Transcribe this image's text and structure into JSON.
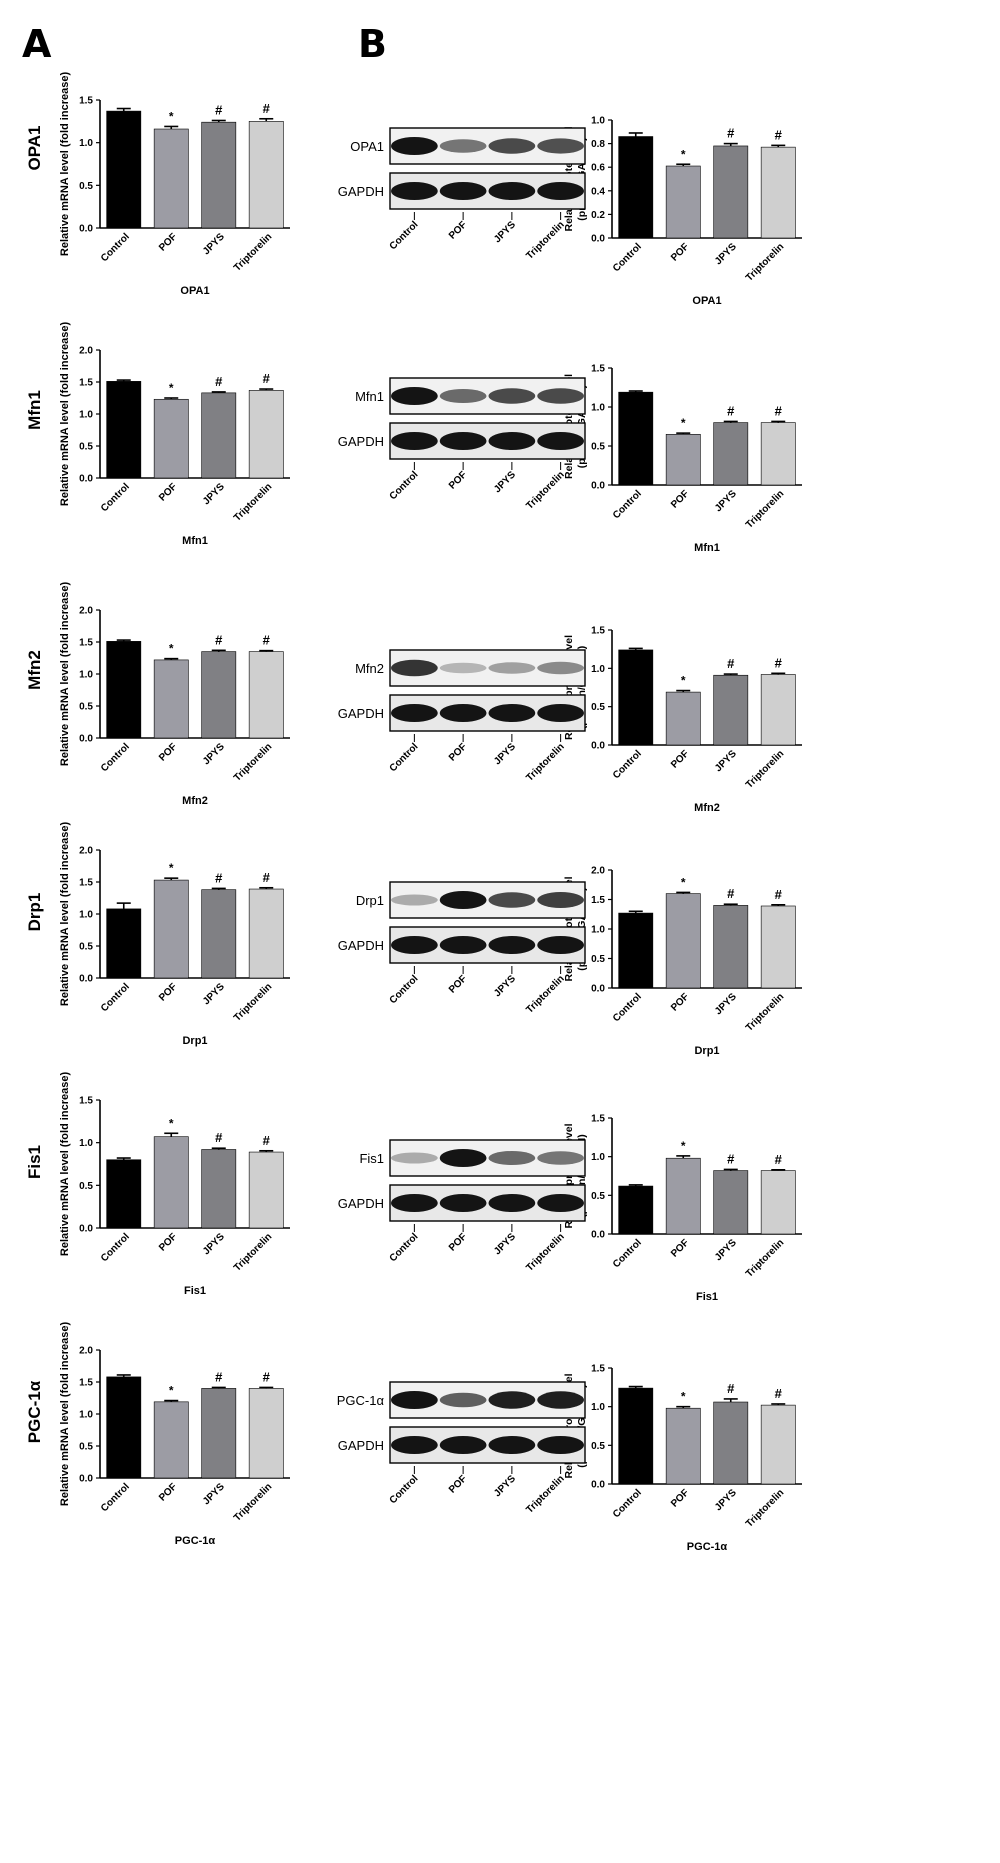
{
  "panel_labels": {
    "a": "A",
    "b": "B"
  },
  "blot": {
    "lanes": [
      "Control",
      "POF",
      "JPYS",
      "Triptorelin"
    ],
    "loading_label": "GAPDH"
  },
  "chart_data": [
    {
      "id": "opa1-mrna",
      "type": "bar",
      "row_label": "OPA1",
      "xlabel": "OPA1",
      "ylabel": "Relative mRNA level (fold increase)",
      "categories": [
        "Control",
        "POF",
        "JPYS",
        "Triptorelin"
      ],
      "values": [
        1.37,
        1.16,
        1.24,
        1.25
      ],
      "errors": [
        0.03,
        0.03,
        0.02,
        0.03
      ],
      "annotations": [
        "",
        "*",
        "#",
        "#"
      ],
      "ylim": [
        0,
        1.5
      ],
      "yticks": [
        "0.0",
        "0.5",
        "1.0",
        "1.5"
      ],
      "colors": [
        "#000000",
        "#9c9ca4",
        "#808084",
        "#cfcfcf"
      ]
    },
    {
      "id": "opa1-protein",
      "type": "bar",
      "xlabel": "OPA1",
      "ylabel": "Relative protein level",
      "ylabel2": "(protein/GAPDH)",
      "categories": [
        "Control",
        "POF",
        "JPYS",
        "Triptorelin"
      ],
      "values": [
        0.86,
        0.61,
        0.78,
        0.77
      ],
      "errors": [
        0.03,
        0.015,
        0.02,
        0.015
      ],
      "annotations": [
        "",
        "*",
        "#",
        "#"
      ],
      "ylim": [
        0,
        1.0
      ],
      "yticks": [
        "0.0",
        "0.2",
        "0.4",
        "0.6",
        "0.8",
        "1.0"
      ],
      "colors": [
        "#000000",
        "#9c9ca4",
        "#808084",
        "#cfcfcf"
      ]
    },
    {
      "id": "mfn1-mrna",
      "type": "bar",
      "row_label": "Mfn1",
      "xlabel": "Mfn1",
      "ylabel": "Relative mRNA level (fold increase)",
      "categories": [
        "Control",
        "POF",
        "JPYS",
        "Triptorelin"
      ],
      "values": [
        1.51,
        1.23,
        1.33,
        1.37
      ],
      "errors": [
        0.02,
        0.02,
        0.015,
        0.02
      ],
      "annotations": [
        "",
        "*",
        "#",
        "#"
      ],
      "ylim": [
        0,
        2.0
      ],
      "yticks": [
        "0.0",
        "0.5",
        "1.0",
        "1.5",
        "2.0"
      ],
      "colors": [
        "#000000",
        "#9c9ca4",
        "#808084",
        "#cfcfcf"
      ]
    },
    {
      "id": "mfn1-protein",
      "type": "bar",
      "xlabel": "Mfn1",
      "ylabel": "Relative protein level",
      "ylabel2": "(protein/GAPDH)",
      "categories": [
        "Control",
        "POF",
        "JPYS",
        "Triptorelin"
      ],
      "values": [
        1.19,
        0.65,
        0.8,
        0.8
      ],
      "errors": [
        0.015,
        0.015,
        0.015,
        0.015
      ],
      "annotations": [
        "",
        "*",
        "#",
        "#"
      ],
      "ylim": [
        0,
        1.5
      ],
      "yticks": [
        "0.0",
        "0.5",
        "1.0",
        "1.5"
      ],
      "colors": [
        "#000000",
        "#9c9ca4",
        "#808084",
        "#cfcfcf"
      ]
    },
    {
      "id": "mfn2-mrna",
      "type": "bar",
      "row_label": "Mfn2",
      "xlabel": "Mfn2",
      "ylabel": "Relative mRNA level (fold increase)",
      "categories": [
        "Control",
        "POF",
        "JPYS",
        "Triptorelin"
      ],
      "values": [
        1.51,
        1.22,
        1.35,
        1.35
      ],
      "errors": [
        0.02,
        0.02,
        0.02,
        0.015
      ],
      "annotations": [
        "",
        "*",
        "#",
        "#"
      ],
      "ylim": [
        0,
        2.0
      ],
      "yticks": [
        "0.0",
        "0.5",
        "1.0",
        "1.5",
        "2.0"
      ],
      "colors": [
        "#000000",
        "#9c9ca4",
        "#808084",
        "#cfcfcf"
      ]
    },
    {
      "id": "mfn2-protein",
      "type": "bar",
      "xlabel": "Mfn2",
      "ylabel": "Relative protein level",
      "ylabel2": "(protein/GAPDH)",
      "categories": [
        "Control",
        "POF",
        "JPYS",
        "Triptorelin"
      ],
      "values": [
        1.24,
        0.69,
        0.91,
        0.92
      ],
      "errors": [
        0.02,
        0.02,
        0.015,
        0.015
      ],
      "annotations": [
        "",
        "*",
        "#",
        "#"
      ],
      "ylim": [
        0,
        1.5
      ],
      "yticks": [
        "0.0",
        "0.5",
        "1.0",
        "1.5"
      ],
      "colors": [
        "#000000",
        "#9c9ca4",
        "#808084",
        "#cfcfcf"
      ]
    },
    {
      "id": "drp1-mrna",
      "type": "bar",
      "row_label": "Drp1",
      "xlabel": "Drp1",
      "ylabel": "Relative mRNA level (fold increase)",
      "categories": [
        "Control",
        "POF",
        "JPYS",
        "Triptorelin"
      ],
      "values": [
        1.08,
        1.53,
        1.38,
        1.39
      ],
      "errors": [
        0.09,
        0.03,
        0.02,
        0.02
      ],
      "annotations": [
        "",
        "*",
        "#",
        "#"
      ],
      "ylim": [
        0,
        2.0
      ],
      "yticks": [
        "0.0",
        "0.5",
        "1.0",
        "1.5",
        "2.0"
      ],
      "colors": [
        "#000000",
        "#9c9ca4",
        "#808084",
        "#cfcfcf"
      ]
    },
    {
      "id": "drp1-protein",
      "type": "bar",
      "xlabel": "Drp1",
      "ylabel": "Relative protein level",
      "ylabel2": "(protein/GAPDH)",
      "categories": [
        "Control",
        "POF",
        "JPYS",
        "Triptorelin"
      ],
      "values": [
        1.27,
        1.6,
        1.4,
        1.39
      ],
      "errors": [
        0.03,
        0.02,
        0.02,
        0.02
      ],
      "annotations": [
        "",
        "*",
        "#",
        "#"
      ],
      "ylim": [
        0,
        2.0
      ],
      "yticks": [
        "0.0",
        "0.5",
        "1.0",
        "1.5",
        "2.0"
      ],
      "colors": [
        "#000000",
        "#9c9ca4",
        "#808084",
        "#cfcfcf"
      ]
    },
    {
      "id": "fis1-mrna",
      "type": "bar",
      "row_label": "Fis1",
      "xlabel": "Fis1",
      "ylabel": "Relative mRNA level (fold increase)",
      "categories": [
        "Control",
        "POF",
        "JPYS",
        "Triptorelin"
      ],
      "values": [
        0.8,
        1.07,
        0.92,
        0.89
      ],
      "errors": [
        0.02,
        0.04,
        0.015,
        0.015
      ],
      "annotations": [
        "",
        "*",
        "#",
        "#"
      ],
      "ylim": [
        0,
        1.5
      ],
      "yticks": [
        "0.0",
        "0.5",
        "1.0",
        "1.5"
      ],
      "colors": [
        "#000000",
        "#9c9ca4",
        "#808084",
        "#cfcfcf"
      ]
    },
    {
      "id": "fis1-protein",
      "type": "bar",
      "xlabel": "Fis1",
      "ylabel": "Relative protein level",
      "ylabel2": "(protein/GAPDH)",
      "categories": [
        "Control",
        "POF",
        "JPYS",
        "Triptorelin"
      ],
      "values": [
        0.62,
        0.98,
        0.82,
        0.82
      ],
      "errors": [
        0.015,
        0.03,
        0.015,
        0.01
      ],
      "annotations": [
        "",
        "*",
        "#",
        "#"
      ],
      "ylim": [
        0,
        1.5
      ],
      "yticks": [
        "0.0",
        "0.5",
        "1.0",
        "1.5"
      ],
      "colors": [
        "#000000",
        "#9c9ca4",
        "#808084",
        "#cfcfcf"
      ]
    },
    {
      "id": "pgc1a-mrna",
      "type": "bar",
      "row_label": "PGC-1α",
      "xlabel": "PGC-1α",
      "ylabel": "Relative mRNA level (fold increase)",
      "categories": [
        "Control",
        "POF",
        "JPYS",
        "Triptorelin"
      ],
      "values": [
        1.58,
        1.19,
        1.4,
        1.4
      ],
      "errors": [
        0.03,
        0.02,
        0.015,
        0.015
      ],
      "annotations": [
        "",
        "*",
        "#",
        "#"
      ],
      "ylim": [
        0,
        2.0
      ],
      "yticks": [
        "0.0",
        "0.5",
        "1.0",
        "1.5",
        "2.0"
      ],
      "colors": [
        "#000000",
        "#9c9ca4",
        "#808084",
        "#cfcfcf"
      ]
    },
    {
      "id": "pgc1a-protein",
      "type": "bar",
      "xlabel": "PGC-1α",
      "ylabel": "Relative protein level",
      "ylabel2": "(protein/GAPDH)",
      "categories": [
        "Control",
        "POF",
        "JPYS",
        "Triptorelin"
      ],
      "values": [
        1.24,
        0.98,
        1.06,
        1.02
      ],
      "errors": [
        0.02,
        0.02,
        0.04,
        0.015
      ],
      "annotations": [
        "",
        "*",
        "#",
        "#"
      ],
      "ylim": [
        0,
        1.5
      ],
      "yticks": [
        "0.0",
        "0.5",
        "1.0",
        "1.5"
      ],
      "colors": [
        "#000000",
        "#9c9ca4",
        "#808084",
        "#cfcfcf"
      ]
    }
  ],
  "blots": [
    {
      "target": "OPA1",
      "target_intensity": [
        1.0,
        0.55,
        0.75,
        0.72
      ],
      "gapdh_intensity": [
        1.0,
        1.0,
        1.0,
        1.0
      ]
    },
    {
      "target": "Mfn1",
      "target_intensity": [
        1.0,
        0.6,
        0.75,
        0.75
      ],
      "gapdh_intensity": [
        1.0,
        1.0,
        1.0,
        1.0
      ]
    },
    {
      "target": "Mfn2",
      "target_intensity": [
        0.85,
        0.25,
        0.35,
        0.45
      ],
      "gapdh_intensity": [
        1.0,
        1.0,
        1.0,
        1.0
      ]
    },
    {
      "target": "Drp1",
      "target_intensity": [
        0.3,
        1.0,
        0.75,
        0.8
      ],
      "gapdh_intensity": [
        1.0,
        1.0,
        1.0,
        1.0
      ]
    },
    {
      "target": "Fis1",
      "target_intensity": [
        0.3,
        1.0,
        0.6,
        0.55
      ],
      "gapdh_intensity": [
        1.0,
        1.0,
        1.0,
        1.0
      ]
    },
    {
      "target": "PGC-1α",
      "target_intensity": [
        1.0,
        0.65,
        0.95,
        0.95
      ],
      "gapdh_intensity": [
        1.0,
        1.0,
        1.0,
        1.0
      ]
    }
  ]
}
